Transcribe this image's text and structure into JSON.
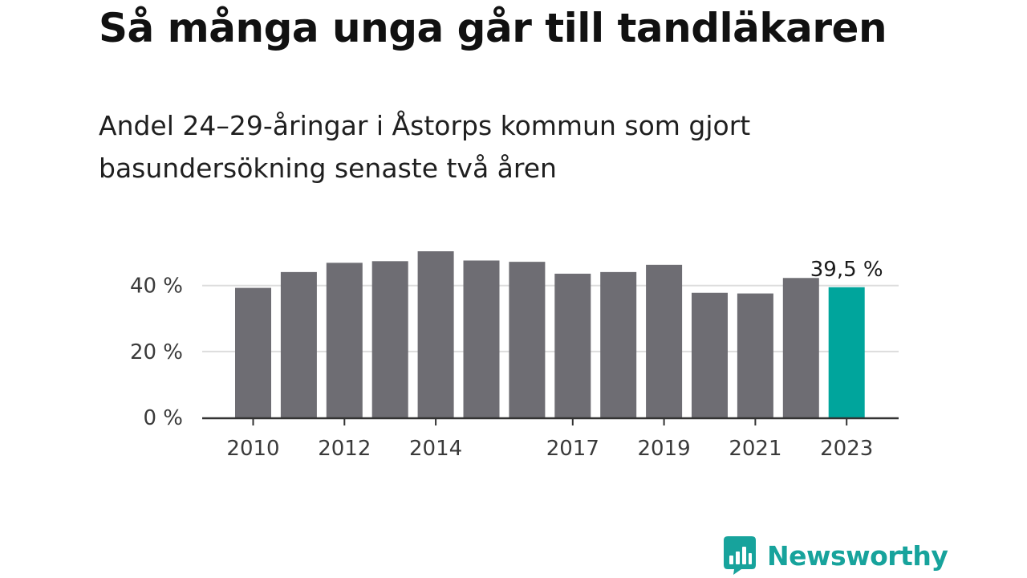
{
  "title": "Så många unga går till tandläkaren",
  "subtitle": "Andel 24–29-åringar i Åstorps kommun som gjort basundersökning senaste två åren",
  "brand": {
    "name": "Newsworthy",
    "logo_icon": "bar-chart-speech-bubble-icon"
  },
  "colors": {
    "bar": "#6e6d73",
    "highlight": "#00a59c",
    "grid": "#dddddd",
    "axis": "#333333",
    "brand": "#17a39c"
  },
  "chart_data": {
    "type": "bar",
    "x": [
      2010,
      2011,
      2012,
      2013,
      2014,
      2015,
      2016,
      2017,
      2018,
      2019,
      2020,
      2021,
      2022,
      2023
    ],
    "values": [
      39.3,
      44.1,
      46.9,
      47.4,
      50.4,
      47.6,
      47.2,
      43.6,
      44.1,
      46.3,
      37.8,
      37.6,
      42.3,
      39.5
    ],
    "x_tick_labels": [
      "2010",
      "",
      "2012",
      "",
      "2014",
      "",
      "",
      "2017",
      "",
      "2019",
      "",
      "2021",
      "",
      "2023"
    ],
    "y_ticks": [
      0,
      20,
      40
    ],
    "y_tick_labels": [
      "0 %",
      "20 %",
      "40 %"
    ],
    "ylim": [
      0,
      50.4
    ],
    "highlight_index": 13,
    "highlight_label": "39,5 %",
    "grid": true,
    "xlabel": "",
    "ylabel": ""
  }
}
